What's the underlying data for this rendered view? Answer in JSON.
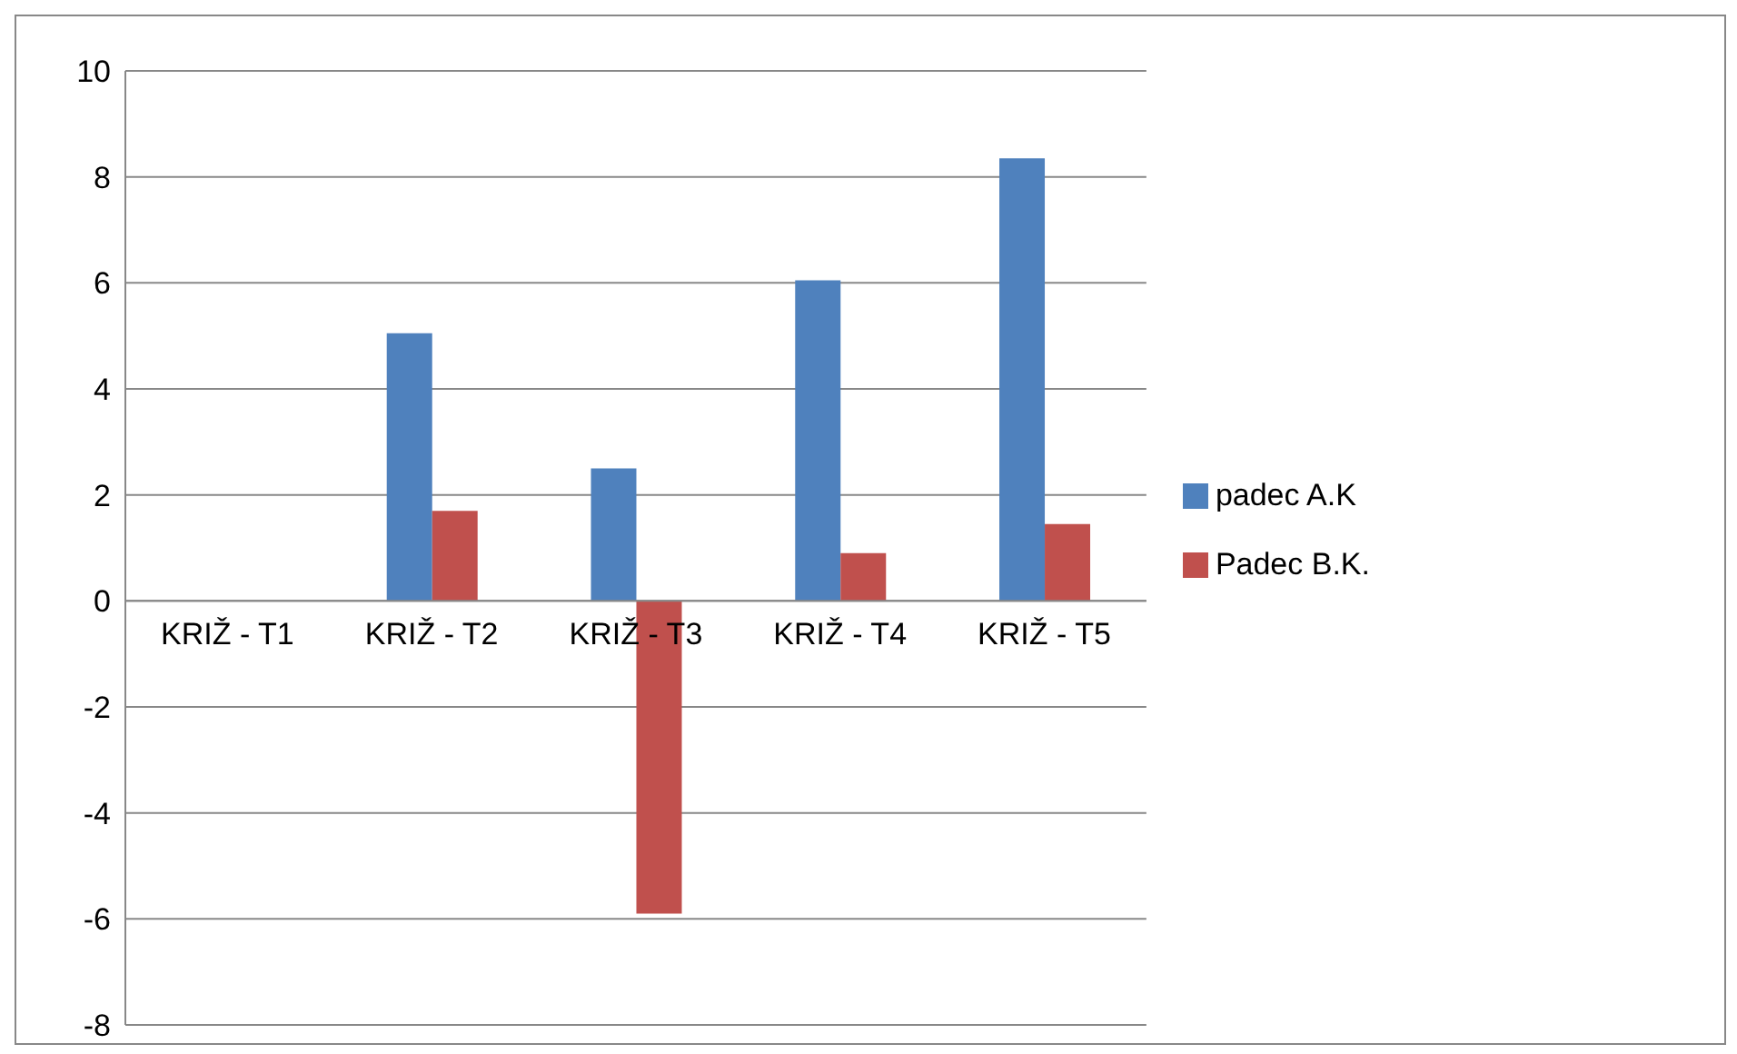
{
  "chart_data": {
    "type": "bar",
    "categories": [
      "KRIŽ - T1",
      "KRIŽ - T2",
      "KRIŽ - T3",
      "KRIŽ - T4",
      "KRIŽ - T5"
    ],
    "series": [
      {
        "name": "padec A.K",
        "color": "#4f81bd",
        "values": [
          0,
          5.05,
          2.5,
          6.05,
          8.35
        ]
      },
      {
        "name": "Padec B.K.",
        "color": "#c0504d",
        "values": [
          0,
          1.7,
          -5.9,
          0.9,
          1.45
        ]
      }
    ],
    "ylim": [
      -8,
      10
    ],
    "yticks": [
      -8,
      -6,
      -4,
      -2,
      0,
      2,
      4,
      6,
      8,
      10
    ],
    "grid": "y",
    "legend": "right"
  }
}
